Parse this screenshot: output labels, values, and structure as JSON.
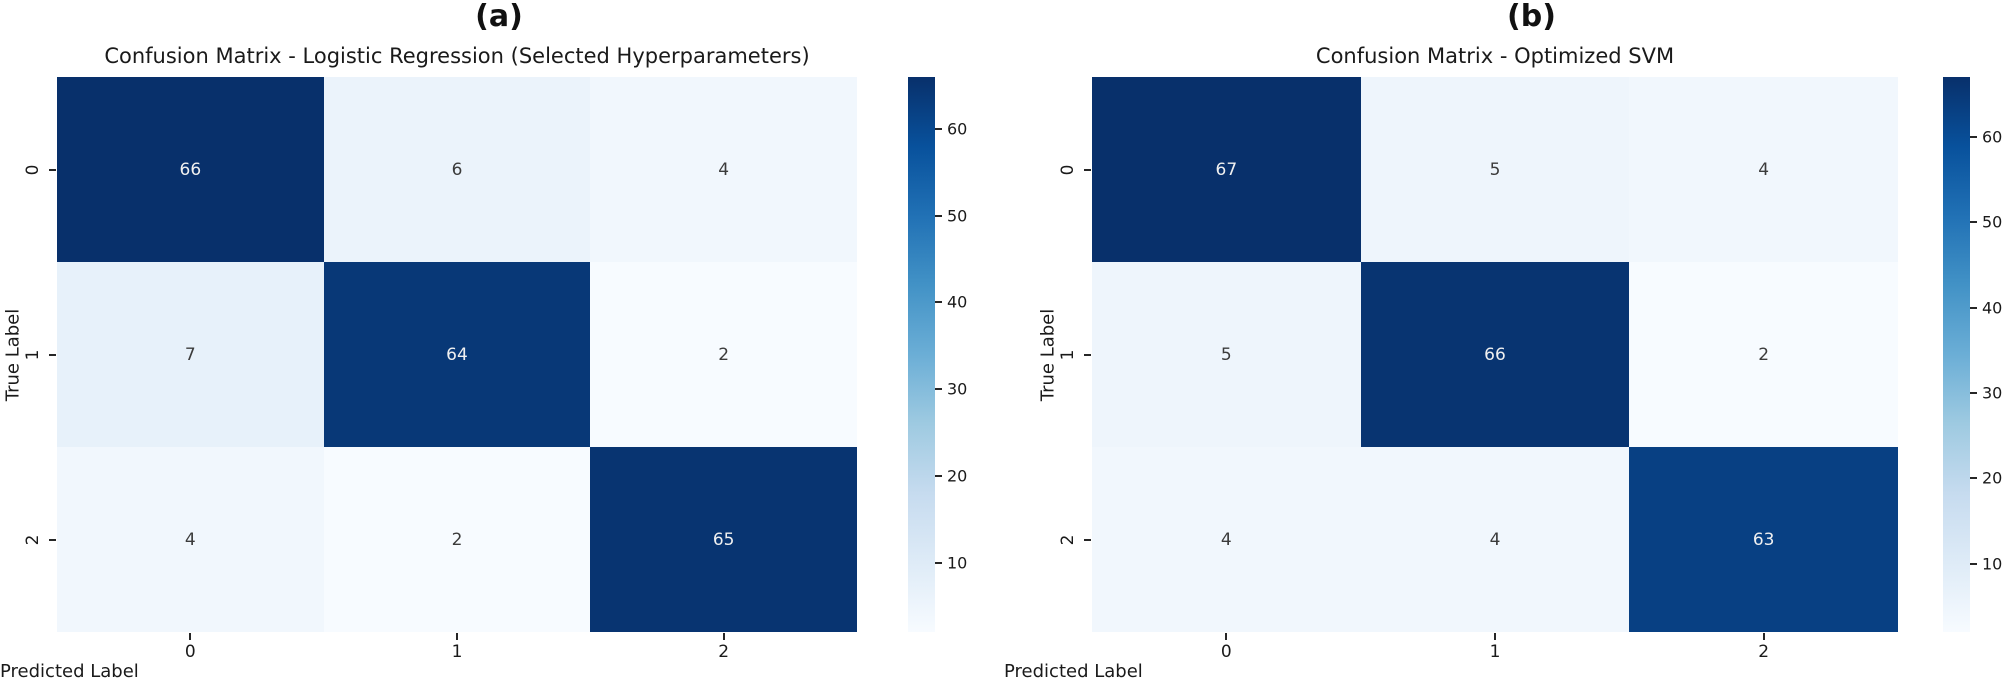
{
  "figure": {
    "background": "#ffffff",
    "colormap_name": "Blues",
    "colormap_anchors": [
      "#f7fbff",
      "#deebf7",
      "#c6dbef",
      "#9ecae1",
      "#6baed6",
      "#4292c6",
      "#2171b5",
      "#08519c",
      "#08306b"
    ],
    "annotation_color_on_dark": "#f0f0f0",
    "annotation_color_on_light": "#3b3b3b",
    "tick_color": "#262626"
  },
  "chart_data": [
    {
      "type": "heatmap",
      "panel_label": "(a)",
      "title": "Confusion Matrix - Logistic Regression (Selected Hyperparameters)",
      "xlabel": "Predicted Label",
      "ylabel": "True Label",
      "x_tick_labels": [
        "0",
        "1",
        "2"
      ],
      "y_tick_labels": [
        "0",
        "1",
        "2"
      ],
      "matrix": [
        [
          66,
          6,
          4
        ],
        [
          7,
          64,
          2
        ],
        [
          4,
          2,
          65
        ]
      ],
      "vmin": 2,
      "vmax": 66,
      "colorbar_ticks": [
        10,
        20,
        30,
        40,
        50,
        60
      ],
      "legend_position": "right-colorbar",
      "grid": false
    },
    {
      "type": "heatmap",
      "panel_label": "(b)",
      "title": "Confusion Matrix - Optimized SVM",
      "xlabel": "Predicted Label",
      "ylabel": "True Label",
      "x_tick_labels": [
        "0",
        "1",
        "2"
      ],
      "y_tick_labels": [
        "0",
        "1",
        "2"
      ],
      "matrix": [
        [
          67,
          5,
          4
        ],
        [
          5,
          66,
          2
        ],
        [
          4,
          4,
          63
        ]
      ],
      "vmin": 2,
      "vmax": 67,
      "colorbar_ticks": [
        10,
        20,
        30,
        40,
        50,
        60
      ],
      "legend_position": "right-colorbar",
      "grid": false
    }
  ]
}
